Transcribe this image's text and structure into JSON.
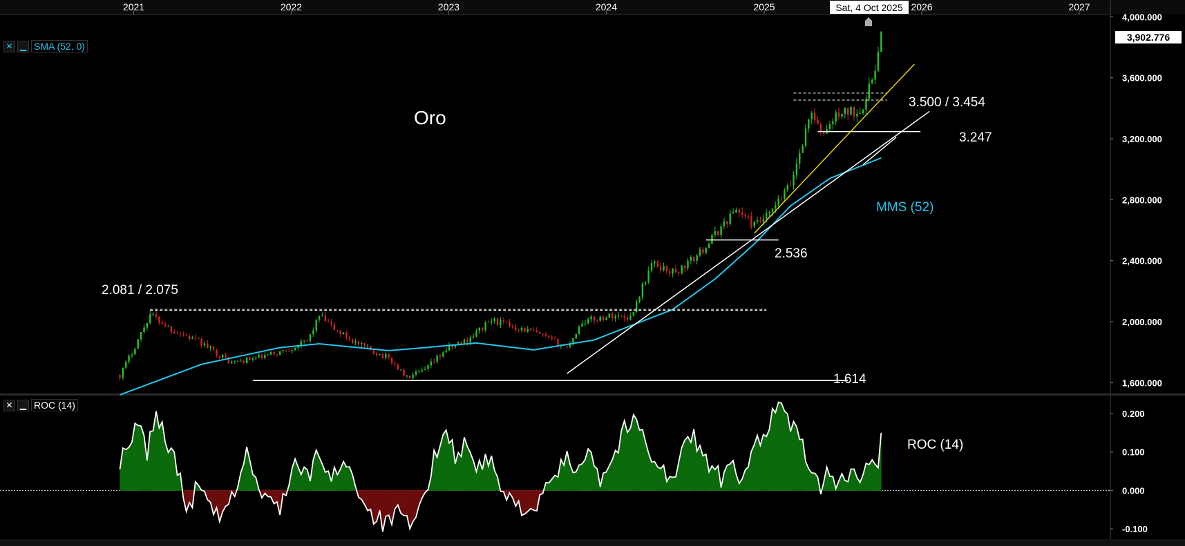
{
  "chart_data": [
    {
      "type": "candlestick",
      "title": "Oro",
      "x_axis": {
        "ticks": [
          "2021",
          "2022",
          "2023",
          "2024",
          "2025",
          "2026",
          "2027"
        ],
        "cursor_label": "Sat, 4 Oct 2025"
      },
      "y_axis": {
        "scale": "linear",
        "ylim": [
          1520000,
          4020000
        ],
        "ticks": [
          1600000,
          2000000,
          2400000,
          2800000,
          3200000,
          3600000,
          4000000
        ],
        "tick_labels": [
          "1,600.000",
          "2,000.000",
          "2,400.000",
          "2,800.000",
          "3,200.000",
          "3,600.000",
          "4,000.000"
        ],
        "last_value_label": "3,902.776",
        "last_value": 3902776
      },
      "indicator": {
        "label": "SMA (52, 0)",
        "annotation": "MMS (52)",
        "color": "#21c6ee"
      },
      "price_keypoints": [
        {
          "date": "2020-11-30",
          "close": 1650000
        },
        {
          "date": "2020-12-28",
          "close": 1800000
        },
        {
          "date": "2021-02-08",
          "close": 2050000
        },
        {
          "date": "2021-03-29",
          "close": 1950000
        },
        {
          "date": "2021-06-07",
          "close": 1860000
        },
        {
          "date": "2021-08-16",
          "close": 1730000
        },
        {
          "date": "2021-10-11",
          "close": 1760000
        },
        {
          "date": "2021-12-06",
          "close": 1800000
        },
        {
          "date": "2022-02-07",
          "close": 1870000
        },
        {
          "date": "2022-03-07",
          "close": 2040000
        },
        {
          "date": "2022-04-11",
          "close": 1950000
        },
        {
          "date": "2022-06-13",
          "close": 1840000
        },
        {
          "date": "2022-08-15",
          "close": 1760000
        },
        {
          "date": "2022-09-26",
          "close": 1630000
        },
        {
          "date": "2022-11-07",
          "close": 1680000
        },
        {
          "date": "2022-12-26",
          "close": 1820000
        },
        {
          "date": "2023-02-13",
          "close": 1880000
        },
        {
          "date": "2023-04-10",
          "close": 2010000
        },
        {
          "date": "2023-05-29",
          "close": 1970000
        },
        {
          "date": "2023-07-17",
          "close": 1930000
        },
        {
          "date": "2023-10-02",
          "close": 1830000
        },
        {
          "date": "2023-11-06",
          "close": 2000000
        },
        {
          "date": "2024-01-15",
          "close": 2040000
        },
        {
          "date": "2024-02-26",
          "close": 2030000
        },
        {
          "date": "2024-04-15",
          "close": 2380000
        },
        {
          "date": "2024-06-10",
          "close": 2320000
        },
        {
          "date": "2024-08-05",
          "close": 2450000
        },
        {
          "date": "2024-10-28",
          "close": 2740000
        },
        {
          "date": "2024-12-09",
          "close": 2630000
        },
        {
          "date": "2025-01-13",
          "close": 2700000
        },
        {
          "date": "2025-03-03",
          "close": 2900000
        },
        {
          "date": "2025-04-21",
          "close": 3390000
        },
        {
          "date": "2025-05-12",
          "close": 3220000
        },
        {
          "date": "2025-06-23",
          "close": 3370000
        },
        {
          "date": "2025-08-04",
          "close": 3380000
        },
        {
          "date": "2025-08-25",
          "close": 3450000
        },
        {
          "date": "2025-09-15",
          "close": 3680000
        },
        {
          "date": "2025-10-04",
          "close": 3902776
        }
      ],
      "sma_keypoints": [
        {
          "date": "2020-11-30",
          "value": 1520000
        },
        {
          "date": "2021-06-07",
          "value": 1720000
        },
        {
          "date": "2021-12-06",
          "value": 1830000
        },
        {
          "date": "2022-03-07",
          "value": 1855000
        },
        {
          "date": "2022-08-15",
          "value": 1810000
        },
        {
          "date": "2022-11-07",
          "value": 1830000
        },
        {
          "date": "2023-03-06",
          "value": 1860000
        },
        {
          "date": "2023-07-17",
          "value": 1815000
        },
        {
          "date": "2023-12-04",
          "value": 1880000
        },
        {
          "date": "2024-03-04",
          "value": 1980000
        },
        {
          "date": "2024-06-03",
          "value": 2080000
        },
        {
          "date": "2024-09-09",
          "value": 2280000
        },
        {
          "date": "2024-12-09",
          "value": 2510000
        },
        {
          "date": "2025-03-03",
          "value": 2760000
        },
        {
          "date": "2025-06-02",
          "value": 2940000
        },
        {
          "date": "2025-10-04",
          "value": 3080000
        }
      ],
      "horizontal_levels": [
        {
          "label": "2.081 / 2.075",
          "values": [
            2081000,
            2075000
          ],
          "style": "dashed",
          "from": "2021-02-08",
          "to": "2025-01-06"
        },
        {
          "label": "1.614",
          "values": [
            1614000
          ],
          "style": "solid",
          "from": "2021-10-04",
          "to": "2025-07-14"
        },
        {
          "label": "2.536",
          "values": [
            2536000
          ],
          "style": "solid",
          "from": "2024-08-19",
          "to": "2025-02-03"
        },
        {
          "label": "3.247",
          "values": [
            3247000
          ],
          "style": "solid",
          "from": "2025-05-05",
          "to": "2025-12-29"
        },
        {
          "label": "3.500 / 3.454",
          "values": [
            3500000,
            3454000
          ],
          "style": "dashed",
          "from": "2025-03-10",
          "to": "2025-10-13"
        }
      ],
      "trendlines": [
        {
          "color": "#ffffff",
          "from": {
            "date": "2023-10-02",
            "value": 1660000
          },
          "to": {
            "date": "2026-01-19",
            "value": 3380000
          }
        },
        {
          "color": "#ffffff",
          "from": {
            "date": "2025-08-18",
            "value": 3030000
          },
          "to": {
            "date": "2025-11-03",
            "value": 3210000
          }
        },
        {
          "color": "#e8d300",
          "from": {
            "date": "2024-12-09",
            "value": 2580000
          },
          "to": {
            "date": "2025-12-15",
            "value": 3690000
          }
        }
      ]
    },
    {
      "type": "area",
      "title": "ROC (14)",
      "label": "ROC (14)",
      "y_axis": {
        "ylim": [
          -0.125,
          0.245
        ],
        "ticks": [
          -0.1,
          0.0,
          0.1,
          0.2
        ],
        "tick_labels": [
          "-0.100",
          "0.000",
          "0.100",
          "0.200"
        ]
      },
      "colors": {
        "positive": "#0b6a0b",
        "negative": "#6a0c0c",
        "line": "#ffffff"
      },
      "roc_keypoints": [
        {
          "date": "2020-11-30",
          "value": 0.08
        },
        {
          "date": "2020-12-21",
          "value": 0.1
        },
        {
          "date": "2021-01-11",
          "value": 0.18
        },
        {
          "date": "2021-02-01",
          "value": 0.1
        },
        {
          "date": "2021-02-22",
          "value": 0.2
        },
        {
          "date": "2021-03-15",
          "value": 0.14
        },
        {
          "date": "2021-04-12",
          "value": 0.06
        },
        {
          "date": "2021-05-03",
          "value": -0.06
        },
        {
          "date": "2021-05-31",
          "value": 0.02
        },
        {
          "date": "2021-06-21",
          "value": -0.04
        },
        {
          "date": "2021-07-26",
          "value": -0.08
        },
        {
          "date": "2021-08-30",
          "value": 0.02
        },
        {
          "date": "2021-09-20",
          "value": 0.1
        },
        {
          "date": "2021-10-25",
          "value": -0.02
        },
        {
          "date": "2021-12-06",
          "value": -0.04
        },
        {
          "date": "2022-01-10",
          "value": 0.07
        },
        {
          "date": "2022-02-07",
          "value": 0.03
        },
        {
          "date": "2022-03-07",
          "value": 0.1
        },
        {
          "date": "2022-04-04",
          "value": 0.02
        },
        {
          "date": "2022-05-02",
          "value": 0.09
        },
        {
          "date": "2022-05-30",
          "value": 0.02
        },
        {
          "date": "2022-06-27",
          "value": -0.05
        },
        {
          "date": "2022-08-08",
          "value": -0.09
        },
        {
          "date": "2022-09-05",
          "value": -0.06
        },
        {
          "date": "2022-10-03",
          "value": -0.1
        },
        {
          "date": "2022-10-31",
          "value": -0.04
        },
        {
          "date": "2022-11-28",
          "value": 0.08
        },
        {
          "date": "2022-12-19",
          "value": 0.17
        },
        {
          "date": "2023-01-16",
          "value": 0.09
        },
        {
          "date": "2023-02-06",
          "value": 0.12
        },
        {
          "date": "2023-03-13",
          "value": 0.06
        },
        {
          "date": "2023-04-10",
          "value": 0.08
        },
        {
          "date": "2023-05-08",
          "value": -0.02
        },
        {
          "date": "2023-06-19",
          "value": -0.04
        },
        {
          "date": "2023-07-24",
          "value": -0.05
        },
        {
          "date": "2023-08-28",
          "value": 0.03
        },
        {
          "date": "2023-10-02",
          "value": 0.08
        },
        {
          "date": "2023-10-23",
          "value": 0.05
        },
        {
          "date": "2023-11-20",
          "value": 0.12
        },
        {
          "date": "2023-12-18",
          "value": 0.03
        },
        {
          "date": "2024-01-15",
          "value": 0.08
        },
        {
          "date": "2024-02-12",
          "value": 0.16
        },
        {
          "date": "2024-03-11",
          "value": 0.18
        },
        {
          "date": "2024-04-08",
          "value": 0.11
        },
        {
          "date": "2024-05-06",
          "value": 0.06
        },
        {
          "date": "2024-06-03",
          "value": 0.02
        },
        {
          "date": "2024-07-01",
          "value": 0.12
        },
        {
          "date": "2024-07-22",
          "value": 0.14
        },
        {
          "date": "2024-08-19",
          "value": 0.08
        },
        {
          "date": "2024-09-23",
          "value": 0.03
        },
        {
          "date": "2024-10-21",
          "value": 0.06
        },
        {
          "date": "2024-11-11",
          "value": 0.01
        },
        {
          "date": "2024-12-09",
          "value": 0.12
        },
        {
          "date": "2025-01-06",
          "value": 0.16
        },
        {
          "date": "2025-02-03",
          "value": 0.23
        },
        {
          "date": "2025-03-03",
          "value": 0.17
        },
        {
          "date": "2025-03-31",
          "value": 0.12
        },
        {
          "date": "2025-04-21",
          "value": 0.05
        },
        {
          "date": "2025-05-12",
          "value": -0.01
        },
        {
          "date": "2025-06-02",
          "value": 0.06
        },
        {
          "date": "2025-06-16",
          "value": 0.0
        },
        {
          "date": "2025-07-07",
          "value": 0.04
        },
        {
          "date": "2025-07-28",
          "value": 0.06
        },
        {
          "date": "2025-08-18",
          "value": 0.02
        },
        {
          "date": "2025-09-08",
          "value": 0.1
        },
        {
          "date": "2025-09-22",
          "value": 0.08
        },
        {
          "date": "2025-10-04",
          "value": 0.15
        }
      ]
    }
  ],
  "ui": {
    "sma_label": "SMA (52, 0)",
    "roc_label": "ROC (14)",
    "close_glyph": "✕",
    "minimize_glyph": "▁"
  }
}
